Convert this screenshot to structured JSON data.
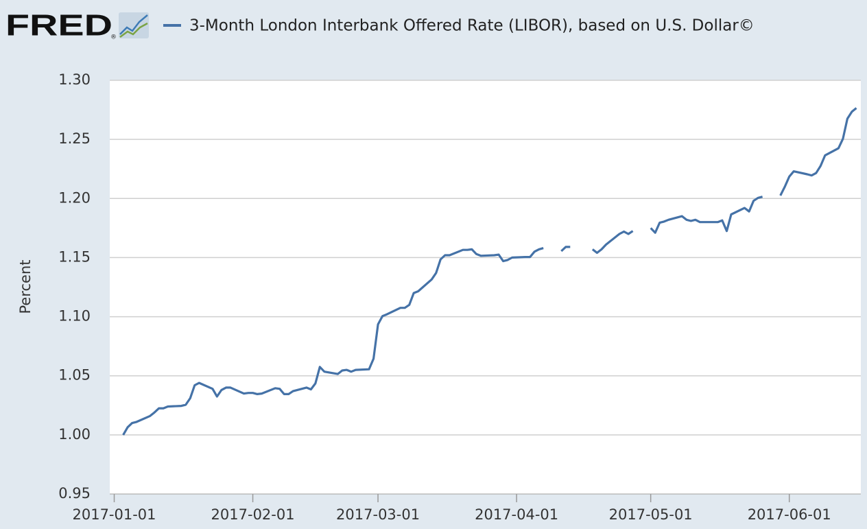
{
  "header": {
    "logo": "FRED",
    "logo_mark": "®"
  },
  "chart_data": {
    "type": "line",
    "y_label": "Percent",
    "x": [
      "2017-01-03",
      "2017-01-04",
      "2017-01-05",
      "2017-01-06",
      "2017-01-09",
      "2017-01-10",
      "2017-01-11",
      "2017-01-12",
      "2017-01-13",
      "2017-01-16",
      "2017-01-17",
      "2017-01-18",
      "2017-01-19",
      "2017-01-20",
      "2017-01-23",
      "2017-01-24",
      "2017-01-25",
      "2017-01-26",
      "2017-01-27",
      "2017-01-30",
      "2017-01-31",
      "2017-02-01",
      "2017-02-02",
      "2017-02-03",
      "2017-02-06",
      "2017-02-07",
      "2017-02-08",
      "2017-02-09",
      "2017-02-10",
      "2017-02-13",
      "2017-02-14",
      "2017-02-15",
      "2017-02-16",
      "2017-02-17",
      "2017-02-20",
      "2017-02-21",
      "2017-02-22",
      "2017-02-23",
      "2017-02-24",
      "2017-02-27",
      "2017-02-28",
      "2017-03-01",
      "2017-03-02",
      "2017-03-03",
      "2017-03-06",
      "2017-03-07",
      "2017-03-08",
      "2017-03-09",
      "2017-03-10",
      "2017-03-13",
      "2017-03-14",
      "2017-03-15",
      "2017-03-16",
      "2017-03-17",
      "2017-03-20",
      "2017-03-21",
      "2017-03-22",
      "2017-03-23",
      "2017-03-24",
      "2017-03-27",
      "2017-03-28",
      "2017-03-29",
      "2017-03-30",
      "2017-03-31",
      "2017-04-03",
      "2017-04-04",
      "2017-04-05",
      "2017-04-06",
      "2017-04-07",
      "2017-04-10",
      "2017-04-11",
      "2017-04-12",
      "2017-04-13",
      "2017-04-14",
      "2017-04-17",
      "2017-04-18",
      "2017-04-19",
      "2017-04-20",
      "2017-04-21",
      "2017-04-24",
      "2017-04-25",
      "2017-04-26",
      "2017-04-27",
      "2017-04-28",
      "2017-05-01",
      "2017-05-02",
      "2017-05-03",
      "2017-05-04",
      "2017-05-05",
      "2017-05-08",
      "2017-05-09",
      "2017-05-10",
      "2017-05-11",
      "2017-05-12",
      "2017-05-15",
      "2017-05-16",
      "2017-05-17",
      "2017-05-18",
      "2017-05-19",
      "2017-05-22",
      "2017-05-23",
      "2017-05-24",
      "2017-05-25",
      "2017-05-26",
      "2017-05-29",
      "2017-05-30",
      "2017-05-31",
      "2017-06-01",
      "2017-06-02",
      "2017-06-05",
      "2017-06-06",
      "2017-06-07",
      "2017-06-08",
      "2017-06-09",
      "2017-06-12",
      "2017-06-13",
      "2017-06-14",
      "2017-06-15",
      "2017-06-16"
    ],
    "series": [
      {
        "name": "3-Month London Interbank Offered Rate (LIBOR), based on U.S. Dollar©",
        "color": "#4572a7",
        "values": [
          1.0,
          1.0065,
          1.01,
          1.011,
          1.016,
          1.019,
          1.0225,
          1.0225,
          1.024,
          1.0245,
          1.0255,
          1.031,
          1.042,
          1.044,
          1.039,
          1.0325,
          1.038,
          1.04,
          1.04,
          1.035,
          1.0355,
          1.0355,
          1.0345,
          1.035,
          1.0395,
          1.039,
          1.0345,
          1.0345,
          1.037,
          1.04,
          1.0385,
          1.0435,
          1.0575,
          1.0535,
          1.0515,
          1.0545,
          1.055,
          1.0535,
          1.055,
          1.0555,
          1.0645,
          1.0935,
          1.1005,
          1.102,
          1.1075,
          1.1075,
          1.11,
          1.12,
          1.1215,
          1.1315,
          1.137,
          1.1485,
          1.152,
          1.152,
          1.1565,
          1.1565,
          1.157,
          1.153,
          1.1515,
          1.152,
          1.1525,
          1.147,
          1.148,
          1.15,
          1.1505,
          1.1505,
          1.155,
          1.157,
          1.158,
          null,
          1.1555,
          1.159,
          1.159,
          null,
          null,
          1.157,
          1.154,
          1.157,
          1.161,
          1.17,
          1.172,
          1.17,
          1.1725,
          null,
          1.175,
          1.171,
          1.1795,
          1.1805,
          1.182,
          1.185,
          1.182,
          1.181,
          1.182,
          1.18,
          1.18,
          1.18,
          1.1815,
          1.1725,
          1.1865,
          1.192,
          1.189,
          1.198,
          1.2005,
          1.2015,
          null,
          1.2025,
          1.21,
          1.2185,
          1.223,
          1.2205,
          1.2195,
          1.2215,
          1.2275,
          1.2365,
          1.2425,
          1.2505,
          1.2675,
          1.2735,
          1.2765
        ]
      }
    ],
    "xlim": [
      "2016-12-31",
      "2017-06-17"
    ],
    "xticks": [
      "2017-01-01",
      "2017-02-01",
      "2017-03-01",
      "2017-04-01",
      "2017-05-01",
      "2017-06-01"
    ],
    "ylim": [
      0.95,
      1.3
    ],
    "yticks": [
      0.95,
      {
        "value": 1.0,
        "label": "1.00"
      },
      1.05,
      {
        "value": 1.1,
        "label": "1.10"
      },
      1.15,
      {
        "value": 1.2,
        "label": "1.20"
      },
      1.25,
      {
        "value": 1.3,
        "label": "1.30"
      }
    ],
    "grid": true
  }
}
